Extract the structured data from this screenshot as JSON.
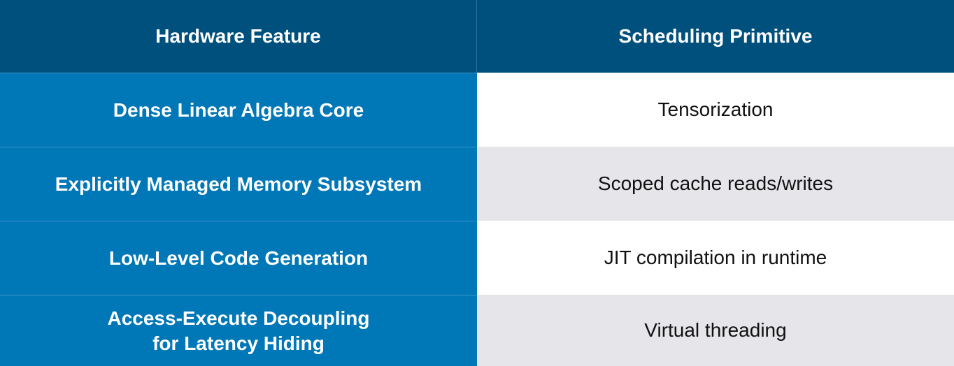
{
  "header": {
    "col1": "Hardware Feature",
    "col2": "Scheduling Primitive"
  },
  "rows": [
    {
      "feature": "Dense Linear Algebra Core",
      "primitive": "Tensorization"
    },
    {
      "feature": "Explicitly Managed Memory Subsystem",
      "primitive": "Scoped cache reads/writes"
    },
    {
      "feature": "Low-Level Code Generation",
      "primitive": "JIT compilation in runtime"
    },
    {
      "feature": "Access-Execute Decoupling\nfor Latency Hiding",
      "primitive": "Virtual threading"
    }
  ],
  "colors": {
    "header_bg": "#00507e",
    "feature_bg": "#0077b6",
    "row_gray": "#e6e6ea",
    "row_white": "#ffffff"
  }
}
